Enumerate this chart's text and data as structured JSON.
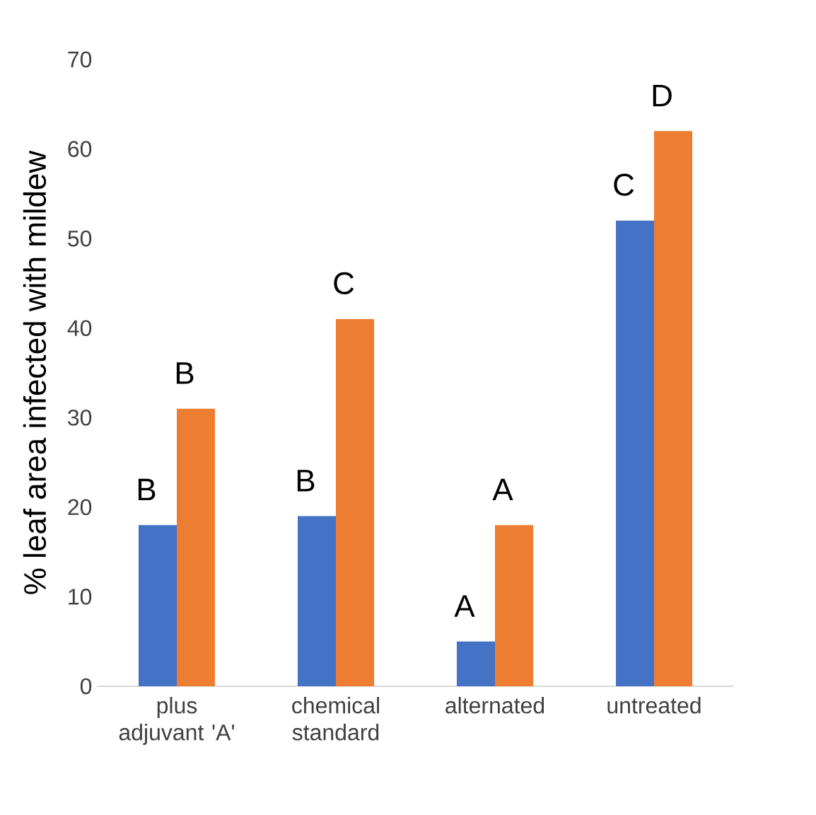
{
  "chart_data": {
    "type": "bar",
    "ylabel": "% leaf area infected with mildew",
    "categories": [
      "plus adjuvant 'A'",
      "chemical standard",
      "alternated",
      "untreated"
    ],
    "series": [
      {
        "color": "#4472c4",
        "values": [
          18,
          19,
          5,
          52
        ],
        "value_labels": [
          "B",
          "B",
          "A",
          "C"
        ]
      },
      {
        "color": "#ed7d31",
        "values": [
          31,
          41,
          18,
          62
        ],
        "value_labels": [
          "B",
          "C",
          "A",
          "D"
        ]
      }
    ],
    "ylim": [
      0,
      70
    ],
    "yticks": [
      0,
      10,
      20,
      30,
      40,
      50,
      60,
      70
    ]
  }
}
